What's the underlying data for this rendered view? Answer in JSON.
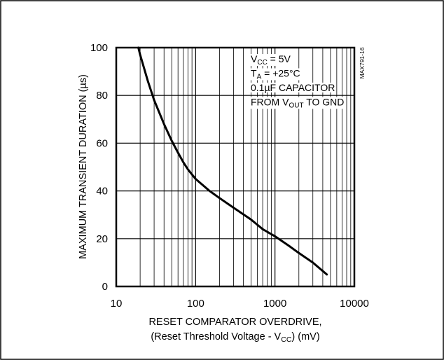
{
  "chart_data": {
    "type": "line",
    "title": "",
    "xlabel": "RESET COMPARATOR OVERDRIVE,",
    "xlabel_line2": {
      "pre": "(Reset Threshold Voltage - V",
      "sub": "CC",
      "post": ") (mV)"
    },
    "ylabel": "MAXIMUM TRANSIENT DURATION (µs)",
    "xscale": "log",
    "xlim": [
      10,
      10000
    ],
    "ylim": [
      0,
      100
    ],
    "xticks": [
      "10",
      "100",
      "1000",
      "10000"
    ],
    "yticks": [
      "0",
      "20",
      "40",
      "60",
      "80",
      "100"
    ],
    "grid": true,
    "series": [
      {
        "x": [
          19,
          20,
          25,
          30,
          40,
          50,
          60,
          70,
          80,
          100,
          150,
          200,
          300,
          500,
          700,
          1000,
          1500,
          2000,
          3000,
          4500
        ],
        "y": [
          100,
          97,
          86,
          78,
          68,
          61,
          56,
          52,
          49,
          45,
          40,
          37,
          33,
          28,
          24,
          21,
          17,
          14,
          10,
          5
        ],
        "color": "#000000"
      }
    ],
    "annotations": [
      {
        "parts": [
          {
            "t": "V"
          },
          {
            "t": "CC",
            "sub": true
          },
          {
            "t": " = 5V"
          }
        ]
      },
      {
        "parts": [
          {
            "t": "T"
          },
          {
            "t": "A",
            "sub": true
          },
          {
            "t": " = +25°C"
          }
        ]
      },
      {
        "parts": [
          {
            "t": "0.1µF CAPACITOR"
          }
        ]
      },
      {
        "parts": [
          {
            "t": "FROM V"
          },
          {
            "t": "OUT",
            "sub": true
          },
          {
            "t": " TO GND"
          }
        ]
      }
    ],
    "figure_code": "MAX791-16"
  }
}
